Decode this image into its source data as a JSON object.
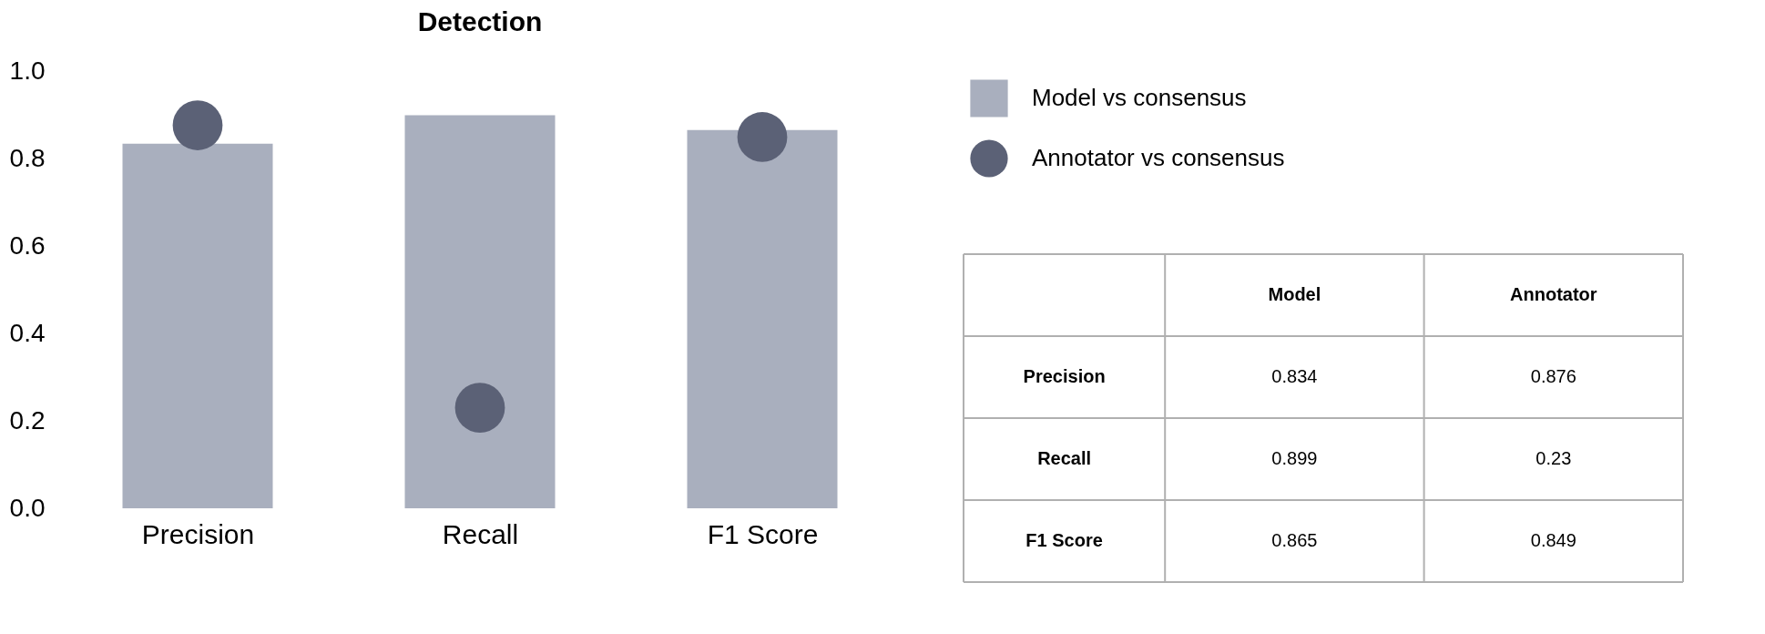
{
  "chart_data": [
    {
      "type": "bar",
      "title": "Detection",
      "categories": [
        "Precision",
        "Recall",
        "F1 Score"
      ],
      "series": [
        {
          "name": "Model vs consensus",
          "type": "bar",
          "color": "#a9afbe",
          "values": [
            0.834,
            0.899,
            0.865
          ]
        },
        {
          "name": "Annotator vs consensus",
          "type": "scatter",
          "color": "#5b6176",
          "values": [
            0.876,
            0.23,
            0.849
          ]
        }
      ],
      "ylim": [
        0,
        1
      ],
      "yticks": [
        {
          "value": 0,
          "label": "0.0"
        },
        {
          "value": 0.2,
          "label": "0.2"
        },
        {
          "value": 0.4,
          "label": "0.4"
        },
        {
          "value": 0.6,
          "label": "0.6"
        },
        {
          "value": 0.8,
          "label": "0.8"
        },
        {
          "value": 1,
          "label": "1.0"
        }
      ],
      "grid": false,
      "legend": "right",
      "marker": "circle"
    },
    {
      "type": "heatmap",
      "categories": [
        "Model",
        "Annotator"
      ],
      "y_categories": [
        "Precision",
        "Recall",
        "F1 Score"
      ],
      "cells": [
        [
          0.834,
          0.876
        ],
        [
          0.899,
          0.23
        ],
        [
          0.865,
          0.849
        ]
      ],
      "data_labels": true
    }
  ]
}
